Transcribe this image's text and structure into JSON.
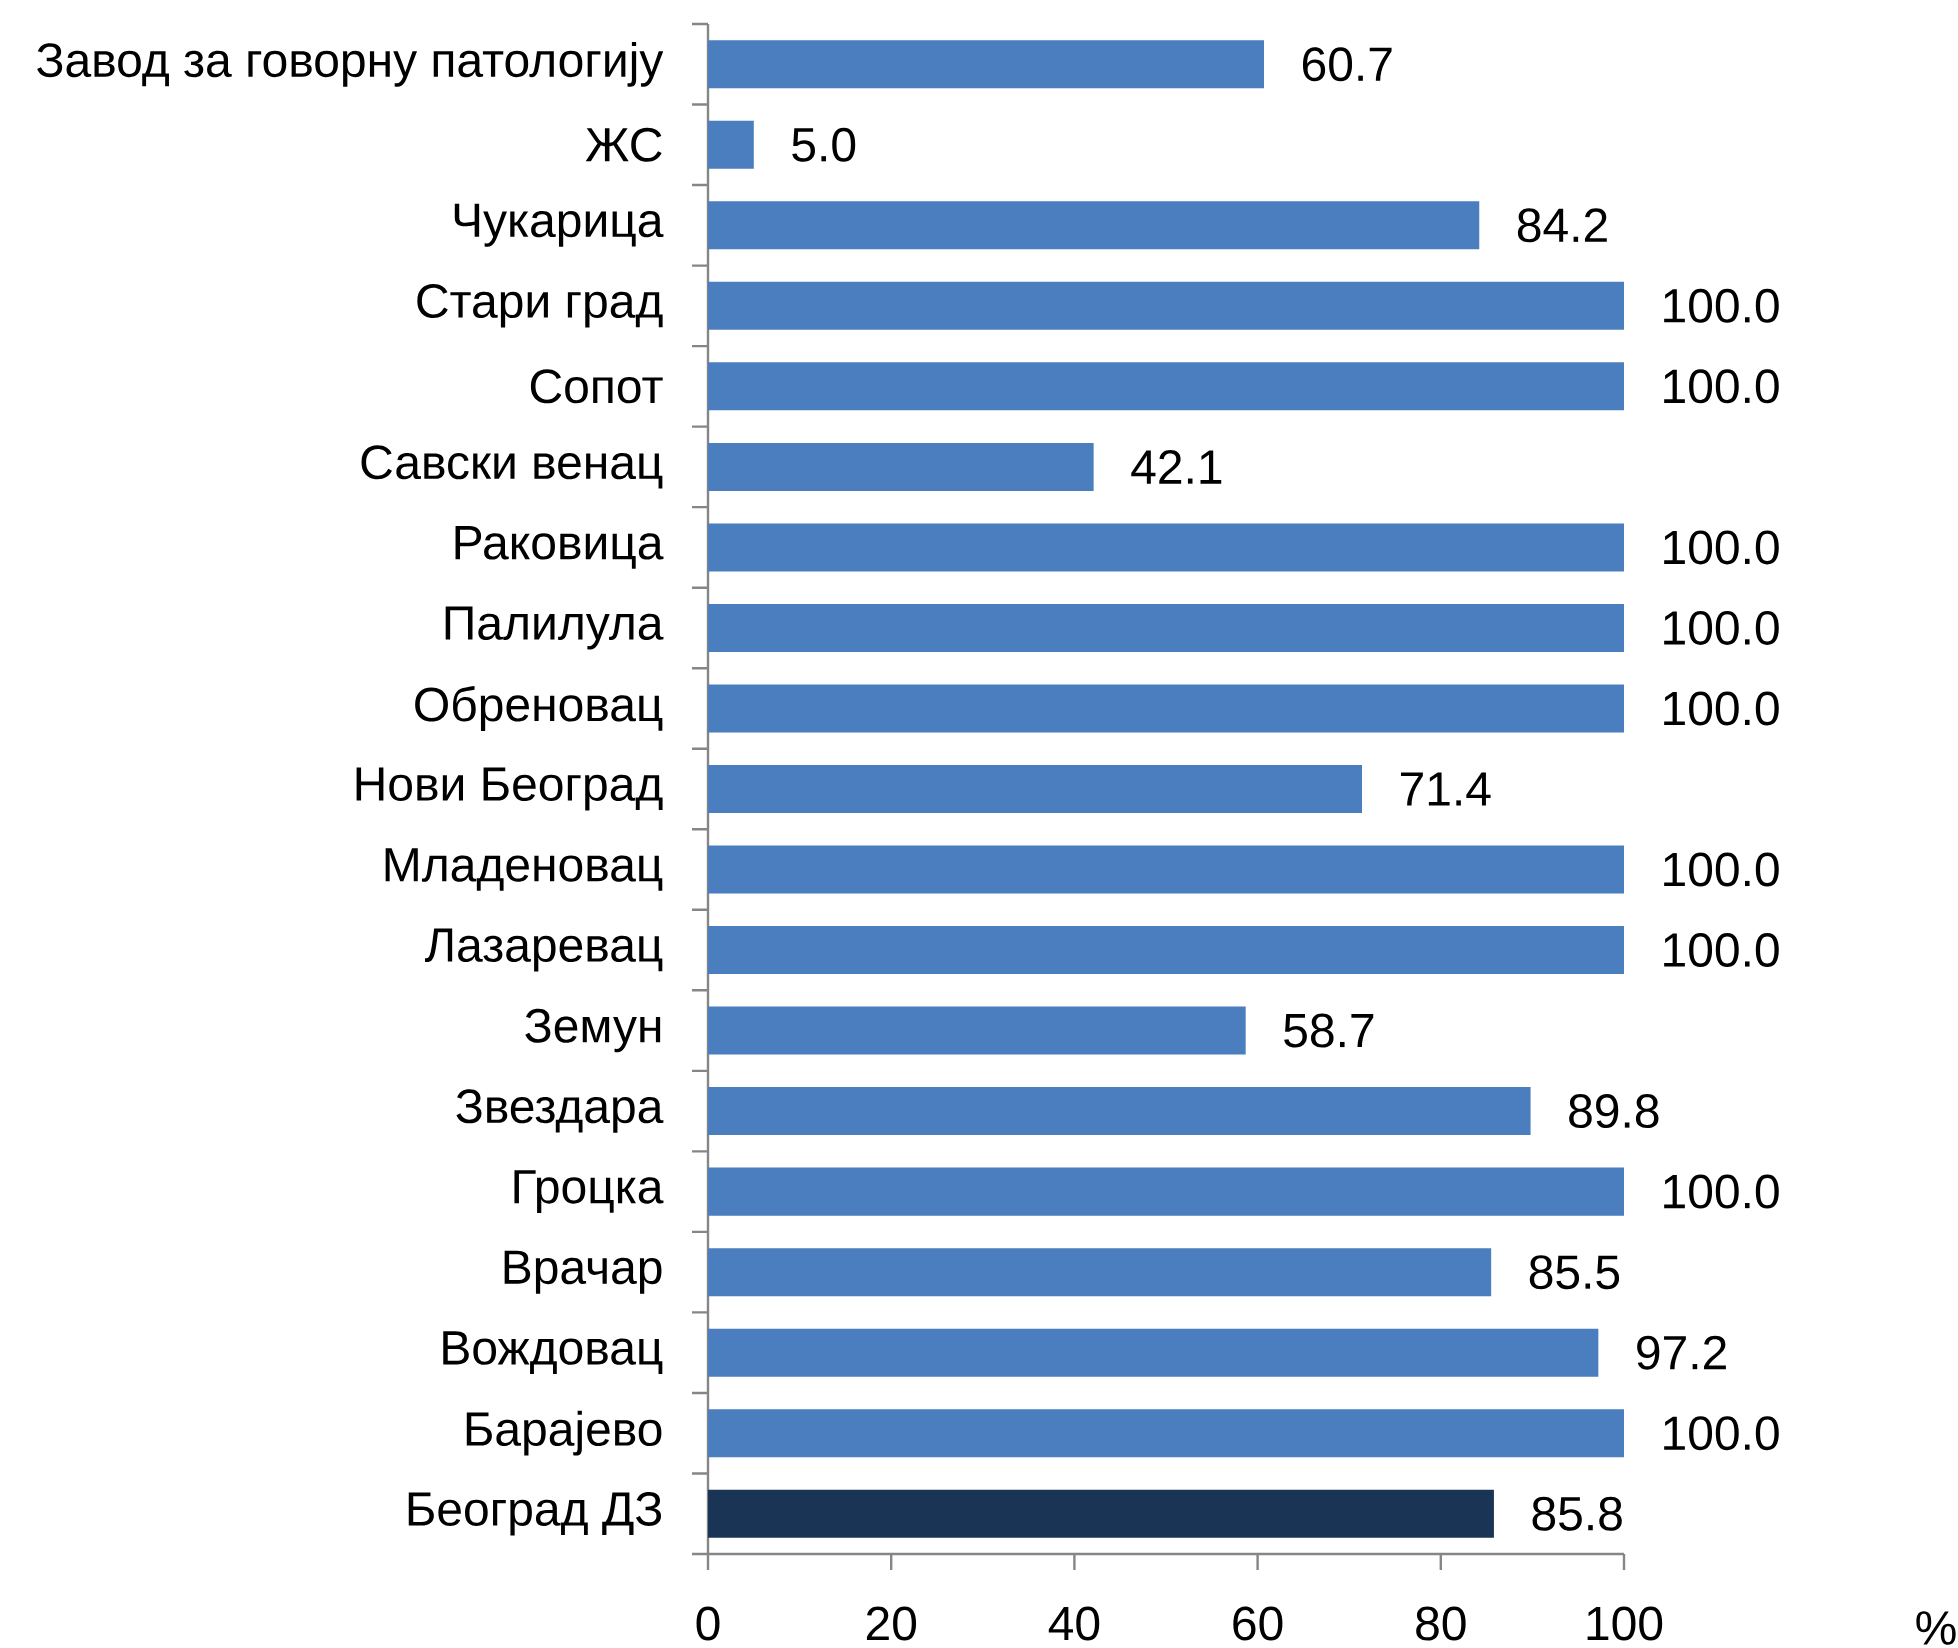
{
  "chart_data": {
    "type": "bar",
    "orientation": "horizontal",
    "categories": [
      "Завод за говорну патологију",
      "ЖС",
      "Чукарица",
      "Стари град",
      "Сопот",
      "Савски венац",
      "Раковица",
      "Палилула",
      "Обреновац",
      "Нови Београд",
      "Младеновац",
      "Лазаревац",
      "Земун",
      "Звездара",
      "Гроцка",
      "Врачар",
      "Вождовац",
      "Барајево",
      "Београд ДЗ"
    ],
    "values": [
      60.7,
      5.0,
      84.2,
      100.0,
      100.0,
      42.1,
      100.0,
      100.0,
      100.0,
      71.4,
      100.0,
      100.0,
      58.7,
      89.8,
      100.0,
      85.5,
      97.2,
      100.0,
      85.8
    ],
    "value_labels": [
      "60.7",
      "5.0",
      "84.2",
      "100.0",
      "100.0",
      "42.1",
      "100.0",
      "100.0",
      "100.0",
      "71.4",
      "100.0",
      "100.0",
      "58.7",
      "89.8",
      "100.0",
      "85.5",
      "97.2",
      "100.0",
      "85.8"
    ],
    "colors": [
      "#4a7ebf",
      "#4a7ebf",
      "#4a7ebf",
      "#4a7ebf",
      "#4a7ebf",
      "#4a7ebf",
      "#4a7ebf",
      "#4a7ebf",
      "#4a7ebf",
      "#4a7ebf",
      "#4a7ebf",
      "#4a7ebf",
      "#4a7ebf",
      "#4a7ebf",
      "#4a7ebf",
      "#4a7ebf",
      "#4a7ebf",
      "#4a7ebf",
      "#1a3456"
    ],
    "xlim": [
      0,
      100
    ],
    "xticks": [
      0,
      20,
      40,
      60,
      80,
      100
    ],
    "annotations": [
      "%"
    ]
  }
}
